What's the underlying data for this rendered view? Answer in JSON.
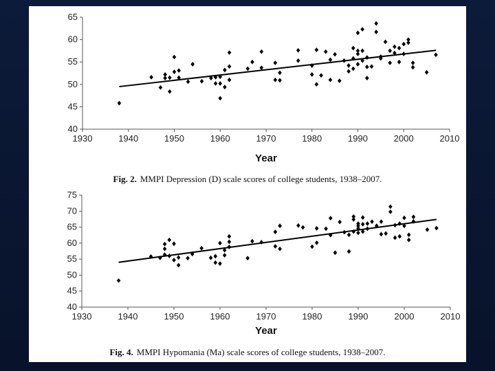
{
  "chart_data": [
    {
      "type": "scatter",
      "figure_label": "Fig. 2.",
      "caption": "MMPI Depression (D) scale scores of college students, 1938–2007.",
      "xlabel": "Year",
      "ylabel": "",
      "xlim": [
        1930,
        2010
      ],
      "ylim": [
        40,
        65
      ],
      "xticks": [
        1930,
        1940,
        1950,
        1960,
        1970,
        1980,
        1990,
        2000,
        2010
      ],
      "yticks": [
        40,
        45,
        50,
        55,
        60,
        65
      ],
      "grid": false,
      "trendline": {
        "x": [
          1938,
          2007
        ],
        "y": [
          49.5,
          57.6
        ]
      },
      "x": [
        1938,
        1945,
        1947,
        1948,
        1948,
        1949,
        1949,
        1950,
        1950,
        1951,
        1951,
        1953,
        1954,
        1956,
        1958,
        1959,
        1959,
        1960,
        1960,
        1960,
        1961,
        1961,
        1962,
        1962,
        1962,
        1966,
        1967,
        1969,
        1969,
        1972,
        1972,
        1973,
        1973,
        1977,
        1977,
        1980,
        1980,
        1981,
        1981,
        1982,
        1983,
        1984,
        1984,
        1985,
        1986,
        1987,
        1988,
        1988,
        1989,
        1989,
        1989,
        1990,
        1990,
        1990,
        1990,
        1991,
        1991,
        1991,
        1992,
        1992,
        1992,
        1993,
        1994,
        1994,
        1995,
        1995,
        1996,
        1997,
        1997,
        1998,
        1998,
        1999,
        1999,
        2000,
        2000,
        2001,
        2001,
        2002,
        2002,
        2005,
        2007
      ],
      "y": [
        45.8,
        51.6,
        49.3,
        52.2,
        51.4,
        51.5,
        48.4,
        56.1,
        52.8,
        53.1,
        51.5,
        50.6,
        54.5,
        50.7,
        51.4,
        50.2,
        51.6,
        50.2,
        51.7,
        46.9,
        49.4,
        53.2,
        57.1,
        54.0,
        51.0,
        53.5,
        55.0,
        57.3,
        53.7,
        54.8,
        51.0,
        52.6,
        50.9,
        57.6,
        55.3,
        52.2,
        54.2,
        50.0,
        57.7,
        52.0,
        57.3,
        55.5,
        51.0,
        56.7,
        50.8,
        55.3,
        52.9,
        54.2,
        58.1,
        53.5,
        55.8,
        61.5,
        57.5,
        56.8,
        54.5,
        62.3,
        57.5,
        55.3,
        53.9,
        51.4,
        56.0,
        54.0,
        63.6,
        61.7,
        56.2,
        55.8,
        59.5,
        57.5,
        54.8,
        58.4,
        57.0,
        55.0,
        58.1,
        56.8,
        59.0,
        60.0,
        59.3,
        54.8,
        53.8,
        52.7,
        56.6
      ]
    },
    {
      "type": "scatter",
      "figure_label": "Fig. 4.",
      "caption": "MMPI Hypomania (Ma) scale scores of college students, 1938–2007.",
      "xlabel": "Year",
      "ylabel": "",
      "xlim": [
        1930,
        2010
      ],
      "ylim": [
        40,
        75
      ],
      "xticks": [
        1930,
        1940,
        1950,
        1960,
        1970,
        1980,
        1990,
        2000,
        2010
      ],
      "yticks": [
        40,
        45,
        50,
        55,
        60,
        65,
        70,
        75
      ],
      "grid": false,
      "trendline": {
        "x": [
          1938,
          2007
        ],
        "y": [
          54.0,
          67.4
        ]
      },
      "x": [
        1938,
        1945,
        1947,
        1948,
        1948,
        1948,
        1949,
        1949,
        1950,
        1950,
        1951,
        1951,
        1953,
        1954,
        1956,
        1958,
        1959,
        1959,
        1960,
        1960,
        1961,
        1961,
        1962,
        1962,
        1962,
        1966,
        1967,
        1969,
        1972,
        1972,
        1973,
        1973,
        1977,
        1978,
        1980,
        1981,
        1981,
        1983,
        1984,
        1984,
        1985,
        1986,
        1987,
        1988,
        1988,
        1989,
        1989,
        1989,
        1990,
        1990,
        1990,
        1990,
        1991,
        1991,
        1991,
        1992,
        1992,
        1993,
        1994,
        1995,
        1995,
        1996,
        1997,
        1997,
        1998,
        1998,
        1999,
        1999,
        2000,
        2000,
        2001,
        2001,
        2002,
        2002,
        2005,
        2007
      ],
      "y": [
        48.3,
        55.8,
        55.4,
        59.7,
        58.2,
        56.4,
        61.0,
        56.0,
        54.7,
        59.8,
        53.1,
        55.5,
        55.3,
        56.6,
        58.4,
        55.4,
        55.9,
        53.9,
        60.0,
        53.6,
        57.8,
        56.2,
        62.1,
        58.8,
        60.4,
        55.3,
        60.6,
        60.3,
        59.0,
        63.5,
        58.2,
        65.4,
        65.5,
        64.9,
        58.9,
        64.6,
        60.1,
        64.5,
        67.8,
        62.5,
        57.0,
        66.6,
        63.4,
        62.6,
        57.4,
        68.3,
        67.4,
        63.6,
        64.6,
        66.1,
        65.4,
        63.2,
        68.0,
        65.9,
        63.6,
        66.1,
        64.5,
        66.7,
        65.4,
        62.8,
        66.7,
        63.0,
        71.4,
        69.8,
        65.6,
        61.7,
        62.1,
        66.1,
        67.9,
        65.4,
        62.6,
        61.0,
        66.8,
        68.2,
        64.2,
        64.7
      ]
    }
  ]
}
